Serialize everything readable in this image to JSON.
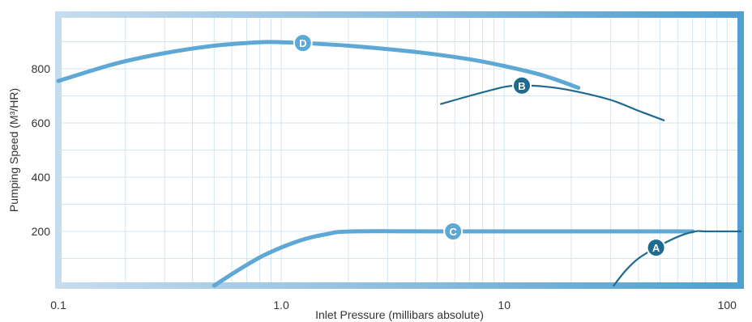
{
  "chart_data": {
    "type": "line",
    "xlabel": "Inlet Pressure (millibars absolute)",
    "ylabel": "Pumping Speed (M³/HR)",
    "x_scale": "log",
    "xlim": [
      0.1,
      115
    ],
    "ylim": [
      0,
      1000
    ],
    "grid": true,
    "x_ticks": [
      {
        "value": 0.1,
        "label": "0.1"
      },
      {
        "value": 1,
        "label": "1.0"
      },
      {
        "value": 10,
        "label": "10"
      },
      {
        "value": 100,
        "label": "100"
      }
    ],
    "y_ticks": [
      {
        "value": 200,
        "label": "200"
      },
      {
        "value": 400,
        "label": "400"
      },
      {
        "value": 600,
        "label": "600"
      },
      {
        "value": 800,
        "label": "800"
      }
    ],
    "series": [
      {
        "name": "D",
        "color": "#5ea8d6",
        "points": [
          [
            0.1,
            755
          ],
          [
            0.15,
            800
          ],
          [
            0.2,
            828
          ],
          [
            0.3,
            858
          ],
          [
            0.5,
            885
          ],
          [
            0.8,
            898
          ],
          [
            1.0,
            898
          ],
          [
            1.25,
            895
          ],
          [
            2,
            885
          ],
          [
            4,
            862
          ],
          [
            7,
            835
          ],
          [
            10,
            810
          ],
          [
            15,
            775
          ],
          [
            21.5,
            730
          ]
        ],
        "marker": {
          "x": 1.25,
          "y": 895
        }
      },
      {
        "name": "B",
        "color": "#1f6a8e",
        "points": [
          [
            5.2,
            670
          ],
          [
            7,
            700
          ],
          [
            10,
            733
          ],
          [
            12,
            738
          ],
          [
            15,
            735
          ],
          [
            20,
            720
          ],
          [
            30,
            685
          ],
          [
            40,
            645
          ],
          [
            52,
            610
          ]
        ],
        "marker": {
          "x": 12,
          "y": 738
        }
      },
      {
        "name": "C",
        "color": "#5ea8d6",
        "points": [
          [
            0.5,
            0
          ],
          [
            0.65,
            60
          ],
          [
            0.85,
            115
          ],
          [
            1.2,
            165
          ],
          [
            1.6,
            190
          ],
          [
            2.1,
            200
          ],
          [
            6,
            200
          ],
          [
            70,
            200
          ]
        ],
        "marker": {
          "x": 5.9,
          "y": 200
        }
      },
      {
        "name": "A",
        "color": "#1f6a8e",
        "points": [
          [
            31,
            0
          ],
          [
            35,
            55
          ],
          [
            40,
            100
          ],
          [
            48,
            140
          ],
          [
            60,
            180
          ],
          [
            72,
            200
          ],
          [
            80,
            200
          ],
          [
            115,
            200
          ]
        ],
        "marker": {
          "x": 48,
          "y": 140
        }
      }
    ]
  }
}
